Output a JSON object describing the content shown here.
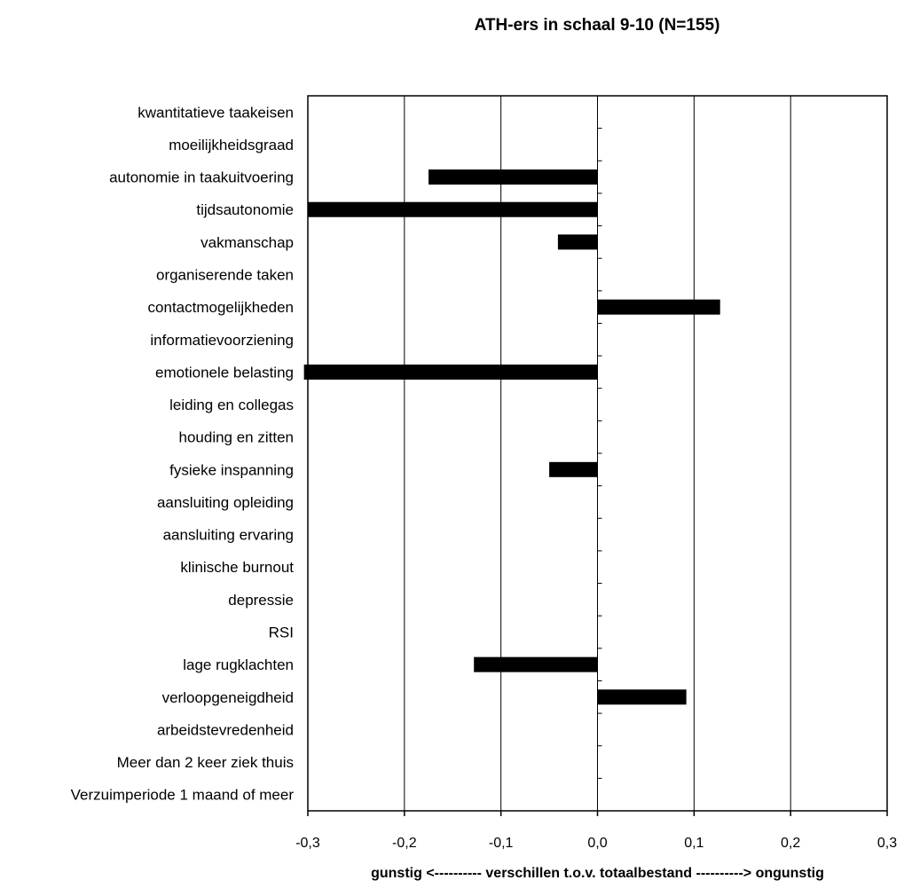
{
  "chart_data": {
    "type": "bar",
    "orientation": "horizontal",
    "title": "ATH-ers in schaal 9-10 (N=155)",
    "xlabel": "gunstig <---------- verschillen t.o.v. totaalbestand ----------> ongunstig",
    "ylabel": "",
    "xlim": [
      -0.3,
      0.3
    ],
    "x_ticks": [
      -0.3,
      -0.2,
      -0.1,
      0.0,
      0.1,
      0.2,
      0.3
    ],
    "x_tick_labels": [
      "-0,3",
      "-0,2",
      "-0,1",
      "0,0",
      "0,1",
      "0,2",
      "0,3"
    ],
    "grid": "vertical",
    "bar_color": "#000000",
    "categories": [
      "kwantitatieve taakeisen",
      "moeilijkheidsgraad",
      "autonomie in taakuitvoering",
      "tijdsautonomie",
      "vakmanschap",
      "organiserende taken",
      "contactmogelijkheden",
      "informatievoorziening",
      "emotionele belasting",
      "leiding en collegas",
      "houding en zitten",
      "fysieke inspanning",
      "aansluiting opleiding",
      "aansluiting ervaring",
      "klinische burnout",
      "depressie",
      "RSI",
      "lage rugklachten",
      "verloopgeneigdheid",
      "arbeidstevredenheid",
      "Meer dan 2 keer ziek thuis",
      "Verzuimperiode 1 maand of meer"
    ],
    "values": [
      0,
      0,
      -0.175,
      -0.3,
      -0.041,
      0,
      0.127,
      0,
      -0.304,
      0,
      0,
      -0.05,
      0,
      0,
      0,
      0,
      0,
      -0.128,
      0.092,
      0,
      0,
      0
    ]
  }
}
